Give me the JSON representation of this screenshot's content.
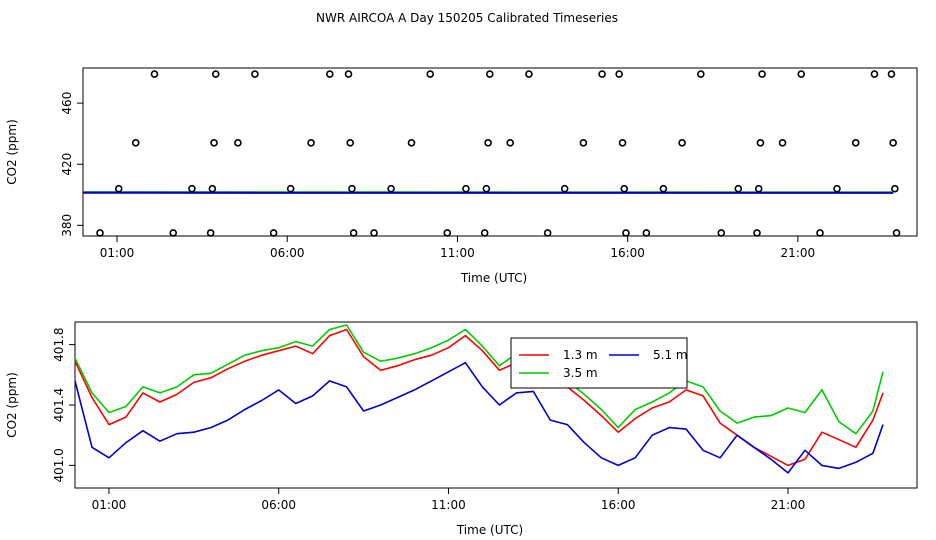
{
  "figure_title": "NWR AIRCOA A  Day 150205  Calibrated Timeseries",
  "chart_data": [
    {
      "type": "scatter",
      "title": "",
      "xlabel": "Time (UTC)",
      "ylabel": "CO2 (ppm)",
      "xlim": [
        0,
        24.5
      ],
      "ylim": [
        373,
        483
      ],
      "x_ticks": [
        1,
        6,
        11,
        16,
        21
      ],
      "x_tick_labels": [
        "01:00",
        "06:00",
        "11:00",
        "16:00",
        "21:00"
      ],
      "y_ticks": [
        380,
        420,
        460
      ],
      "y_tick_labels": [
        "380",
        "420",
        "460"
      ],
      "points": [
        {
          "x": 0.5,
          "y": 375
        },
        {
          "x": 1.05,
          "y": 404
        },
        {
          "x": 1.55,
          "y": 434
        },
        {
          "x": 2.1,
          "y": 479
        },
        {
          "x": 2.65,
          "y": 375
        },
        {
          "x": 3.2,
          "y": 404
        },
        {
          "x": 3.75,
          "y": 375
        },
        {
          "x": 3.8,
          "y": 404
        },
        {
          "x": 3.85,
          "y": 434
        },
        {
          "x": 3.9,
          "y": 479
        },
        {
          "x": 4.55,
          "y": 434
        },
        {
          "x": 5.05,
          "y": 479
        },
        {
          "x": 5.6,
          "y": 375
        },
        {
          "x": 6.1,
          "y": 404
        },
        {
          "x": 6.7,
          "y": 434
        },
        {
          "x": 7.25,
          "y": 479
        },
        {
          "x": 7.8,
          "y": 479
        },
        {
          "x": 7.85,
          "y": 434
        },
        {
          "x": 7.9,
          "y": 404
        },
        {
          "x": 7.95,
          "y": 375
        },
        {
          "x": 8.55,
          "y": 375
        },
        {
          "x": 9.05,
          "y": 404
        },
        {
          "x": 9.65,
          "y": 434
        },
        {
          "x": 10.2,
          "y": 479
        },
        {
          "x": 10.7,
          "y": 375
        },
        {
          "x": 11.25,
          "y": 404
        },
        {
          "x": 11.8,
          "y": 375
        },
        {
          "x": 11.85,
          "y": 404
        },
        {
          "x": 11.9,
          "y": 434
        },
        {
          "x": 11.95,
          "y": 479
        },
        {
          "x": 12.55,
          "y": 434
        },
        {
          "x": 13.1,
          "y": 479
        },
        {
          "x": 13.65,
          "y": 375
        },
        {
          "x": 14.15,
          "y": 404
        },
        {
          "x": 14.7,
          "y": 434
        },
        {
          "x": 15.25,
          "y": 479
        },
        {
          "x": 15.75,
          "y": 479
        },
        {
          "x": 15.85,
          "y": 434
        },
        {
          "x": 15.9,
          "y": 404
        },
        {
          "x": 15.95,
          "y": 375
        },
        {
          "x": 16.55,
          "y": 375
        },
        {
          "x": 17.05,
          "y": 404
        },
        {
          "x": 17.6,
          "y": 434
        },
        {
          "x": 18.15,
          "y": 479
        },
        {
          "x": 18.75,
          "y": 375
        },
        {
          "x": 19.25,
          "y": 404
        },
        {
          "x": 19.8,
          "y": 375
        },
        {
          "x": 19.85,
          "y": 404
        },
        {
          "x": 19.9,
          "y": 434
        },
        {
          "x": 19.95,
          "y": 479
        },
        {
          "x": 20.55,
          "y": 434
        },
        {
          "x": 21.1,
          "y": 479
        },
        {
          "x": 21.65,
          "y": 375
        },
        {
          "x": 22.15,
          "y": 404
        },
        {
          "x": 22.7,
          "y": 434
        },
        {
          "x": 23.25,
          "y": 479
        },
        {
          "x": 23.75,
          "y": 479
        },
        {
          "x": 23.8,
          "y": 434
        },
        {
          "x": 23.85,
          "y": 404
        },
        {
          "x": 23.9,
          "y": 375
        }
      ],
      "series": [
        {
          "name": "1.3 m",
          "color": "#ff0000",
          "values": [
            401.6,
            401.6
          ]
        },
        {
          "name": "3.5 m",
          "color": "#00cc00",
          "values": [
            401.7,
            401.5
          ]
        },
        {
          "name": "5.1 m",
          "color": "#0000cc",
          "values": [
            401.3,
            401.2
          ]
        }
      ],
      "series_x": [
        0,
        23.8
      ]
    },
    {
      "type": "line",
      "title": "",
      "xlabel": "Time (UTC)",
      "ylabel": "CO2 (ppm)",
      "xlim": [
        0,
        24.8
      ],
      "ylim": [
        400.85,
        401.95
      ],
      "x_ticks": [
        1,
        6,
        11,
        16,
        21
      ],
      "x_tick_labels": [
        "01:00",
        "06:00",
        "11:00",
        "16:00",
        "21:00"
      ],
      "y_ticks": [
        401.0,
        401.4,
        401.8
      ],
      "y_tick_labels": [
        "401.0",
        "401.4",
        "401.8"
      ],
      "legend": {
        "position": "top-center",
        "entries": [
          "1.3 m",
          "3.5 m",
          "5.1 m"
        ]
      },
      "x": [
        0.0,
        0.5,
        1.0,
        1.5,
        2.0,
        2.5,
        3.0,
        3.5,
        4.0,
        4.5,
        5.0,
        5.5,
        6.0,
        6.5,
        7.0,
        7.5,
        8.0,
        8.5,
        9.0,
        9.5,
        10.0,
        10.5,
        11.0,
        11.5,
        12.0,
        12.5,
        13.0,
        13.5,
        14.0,
        14.5,
        15.0,
        15.5,
        16.0,
        16.5,
        17.0,
        17.5,
        18.0,
        18.5,
        19.0,
        19.5,
        20.0,
        20.5,
        21.0,
        21.5,
        22.0,
        22.5,
        23.0,
        23.5,
        23.8
      ],
      "series": [
        {
          "name": "1.3 m",
          "color": "#ff0000",
          "values": [
            401.69,
            401.45,
            401.27,
            401.32,
            401.48,
            401.42,
            401.47,
            401.55,
            401.58,
            401.64,
            401.69,
            401.73,
            401.76,
            401.79,
            401.74,
            401.86,
            401.9,
            401.72,
            401.63,
            401.66,
            401.7,
            401.73,
            401.78,
            401.86,
            401.76,
            401.63,
            401.68,
            401.73,
            401.6,
            401.52,
            401.43,
            401.33,
            401.22,
            401.31,
            401.38,
            401.42,
            401.5,
            401.46,
            401.28,
            401.2,
            401.12,
            401.06,
            401.0,
            401.04,
            401.22,
            401.17,
            401.12,
            401.3,
            401.48
          ]
        },
        {
          "name": "3.5 m",
          "color": "#00cc00",
          "values": [
            401.71,
            401.48,
            401.35,
            401.39,
            401.52,
            401.48,
            401.52,
            401.6,
            401.61,
            401.67,
            401.73,
            401.76,
            401.78,
            401.82,
            401.79,
            401.9,
            401.93,
            401.75,
            401.69,
            401.71,
            401.74,
            401.78,
            401.83,
            401.9,
            401.79,
            401.66,
            401.74,
            401.76,
            401.63,
            401.56,
            401.47,
            401.37,
            401.25,
            401.37,
            401.42,
            401.48,
            401.56,
            401.52,
            401.36,
            401.28,
            401.32,
            401.33,
            401.38,
            401.35,
            401.5,
            401.29,
            401.21,
            401.36,
            401.62
          ]
        },
        {
          "name": "5.1 m",
          "color": "#0000cc",
          "values": [
            401.56,
            401.12,
            401.05,
            401.15,
            401.23,
            401.16,
            401.21,
            401.22,
            401.25,
            401.3,
            401.37,
            401.43,
            401.5,
            401.41,
            401.46,
            401.56,
            401.52,
            401.36,
            401.4,
            401.45,
            401.5,
            401.56,
            401.62,
            401.68,
            401.52,
            401.4,
            401.48,
            401.49,
            401.3,
            401.27,
            401.15,
            401.05,
            401.0,
            401.05,
            401.2,
            401.25,
            401.24,
            401.1,
            401.05,
            401.2,
            401.12,
            401.04,
            400.95,
            401.1,
            401.0,
            400.98,
            401.02,
            401.08,
            401.27
          ]
        }
      ]
    }
  ]
}
